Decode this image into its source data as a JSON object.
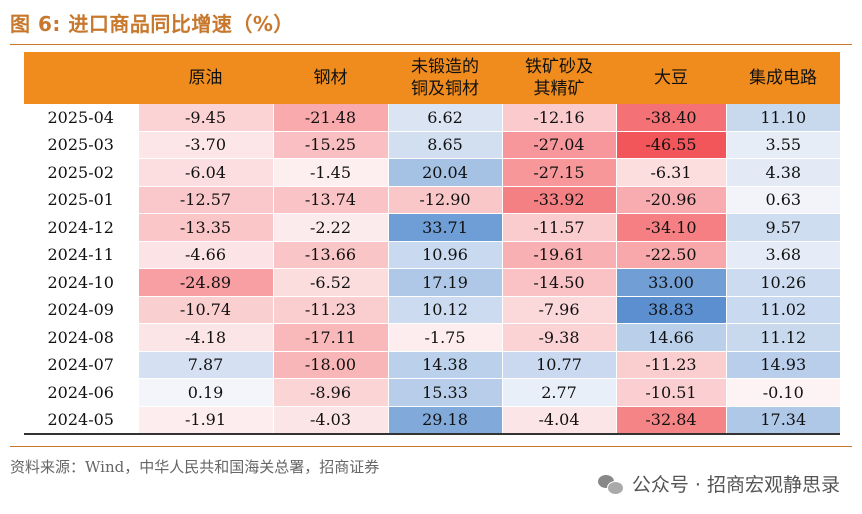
{
  "title": "图 6:  进口商品同比增速（%）",
  "source": "资料来源：Wind，中华人民共和国海关总署，招商证券",
  "watermark": "公众号 · 招商宏观静思录",
  "watermark_icon": "wechat-icon",
  "colors": {
    "header": "#F08C1E",
    "accent": "#C8782D",
    "positive": "#5B8FCF",
    "negative": "#F2555A"
  },
  "chart_data": {
    "type": "table",
    "columns": [
      "",
      "原油",
      "钢材",
      "未锻造的铜及铜材",
      "铁矿砂及其精矿",
      "大豆",
      "集成电路"
    ],
    "rows": [
      {
        "date": "2025-04",
        "values": [
          -9.45,
          -21.48,
          6.62,
          -12.16,
          -38.4,
          11.1
        ]
      },
      {
        "date": "2025-03",
        "values": [
          -3.7,
          -15.25,
          8.65,
          -27.04,
          -46.55,
          3.55
        ]
      },
      {
        "date": "2025-02",
        "values": [
          -6.04,
          -1.45,
          20.04,
          -27.15,
          -6.31,
          4.38
        ]
      },
      {
        "date": "2025-01",
        "values": [
          -12.57,
          -13.74,
          -12.9,
          -33.92,
          -20.96,
          0.63
        ]
      },
      {
        "date": "2024-12",
        "values": [
          -13.35,
          -2.22,
          33.71,
          -11.57,
          -34.1,
          9.57
        ]
      },
      {
        "date": "2024-11",
        "values": [
          -4.66,
          -13.66,
          10.96,
          -19.61,
          -22.5,
          3.68
        ]
      },
      {
        "date": "2024-10",
        "values": [
          -24.89,
          -6.52,
          17.19,
          -14.5,
          33.0,
          10.26
        ]
      },
      {
        "date": "2024-09",
        "values": [
          -10.74,
          -11.23,
          10.12,
          -7.96,
          38.83,
          11.02
        ]
      },
      {
        "date": "2024-08",
        "values": [
          -4.18,
          -17.11,
          -1.75,
          -9.38,
          14.66,
          11.12
        ]
      },
      {
        "date": "2024-07",
        "values": [
          7.87,
          -18.0,
          14.38,
          10.77,
          -11.23,
          14.93
        ]
      },
      {
        "date": "2024-06",
        "values": [
          0.19,
          -8.96,
          15.33,
          2.77,
          -10.51,
          -0.1
        ]
      },
      {
        "date": "2024-05",
        "values": [
          -1.91,
          -4.03,
          29.18,
          -4.04,
          -32.84,
          17.34
        ]
      }
    ]
  }
}
